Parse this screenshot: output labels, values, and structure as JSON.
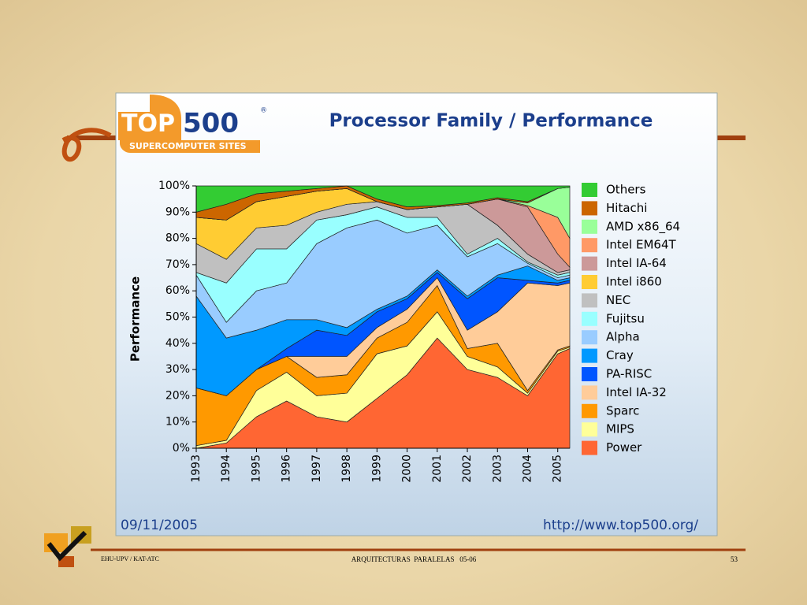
{
  "chart_data": {
    "type": "area",
    "stacked": true,
    "title": "Processor Family / Performance",
    "y_label": "Performance",
    "x": [
      1993,
      1994,
      1995,
      1996,
      1997,
      1998,
      1999,
      2000,
      2001,
      2002,
      2003,
      2004,
      2005,
      2005.4
    ],
    "xlim": [
      1993,
      2005.4
    ],
    "xticks": [
      1993,
      1994,
      1995,
      1996,
      1997,
      1998,
      1999,
      2000,
      2001,
      2002,
      2003,
      2004,
      2005
    ],
    "ylim": [
      0,
      100
    ],
    "yticks": [
      {
        "value": 0,
        "label": "0%"
      },
      {
        "value": 10,
        "label": "10%"
      },
      {
        "value": 20,
        "label": "20%"
      },
      {
        "value": 30,
        "label": "30%"
      },
      {
        "value": 40,
        "label": "40%"
      },
      {
        "value": 50,
        "label": "50%"
      },
      {
        "value": 60,
        "label": "60%"
      },
      {
        "value": 70,
        "label": "70%"
      },
      {
        "value": 80,
        "label": "80%"
      },
      {
        "value": 90,
        "label": "90%"
      },
      {
        "value": 100,
        "label": "100%"
      }
    ],
    "legend": "right",
    "series": [
      {
        "name": "Power",
        "color": "#ff6633",
        "values": [
          0,
          2,
          12,
          18,
          12,
          10,
          19,
          28,
          42,
          30,
          27,
          20,
          36,
          38
        ]
      },
      {
        "name": "MIPS",
        "color": "#ffff99",
        "values": [
          1,
          1,
          10,
          11,
          8,
          11,
          17,
          11,
          10,
          5,
          4,
          1,
          1,
          0.5
        ]
      },
      {
        "name": "Sparc",
        "color": "#ff9900",
        "values": [
          22,
          17,
          8,
          6,
          7,
          7,
          6,
          9,
          10,
          3,
          9,
          1,
          0.5,
          0.5
        ]
      },
      {
        "name": "Intel IA-32",
        "color": "#ffcc99",
        "values": [
          0,
          0,
          0,
          0,
          8,
          7,
          4,
          5,
          3,
          7,
          12,
          41,
          24.5,
          24
        ]
      },
      {
        "name": "PA-RISC",
        "color": "#0055ff",
        "values": [
          0,
          0,
          0,
          3,
          10,
          8,
          6,
          4,
          2,
          12,
          13,
          1,
          1,
          1
        ]
      },
      {
        "name": "Cray",
        "color": "#0099ff",
        "values": [
          35,
          22,
          15,
          11,
          4,
          3,
          1,
          1,
          1,
          1,
          1,
          5.5,
          1,
          1
        ]
      },
      {
        "name": "Alpha",
        "color": "#99ccff",
        "values": [
          8,
          6,
          15,
          14,
          29,
          38,
          34,
          24,
          17,
          15,
          12,
          1,
          1,
          1
        ]
      },
      {
        "name": "Fujitsu",
        "color": "#99ffff",
        "values": [
          1,
          15,
          16,
          13,
          9,
          5,
          5,
          6,
          3,
          1,
          2,
          0.5,
          1,
          1
        ]
      },
      {
        "name": "NEC",
        "color": "#c0c0c0",
        "values": [
          11,
          9,
          8,
          9,
          3,
          4,
          2,
          3,
          4,
          19,
          5,
          3,
          1,
          1
        ]
      },
      {
        "name": "Intel i860",
        "color": "#ffcc33",
        "values": [
          10,
          15,
          10,
          11,
          8,
          6,
          0,
          0,
          0,
          0,
          0,
          0,
          0,
          0
        ]
      },
      {
        "name": "Intel IA-64",
        "color": "#cc9999",
        "values": [
          0,
          0,
          0,
          0,
          0,
          0,
          0,
          0,
          0,
          0,
          10,
          18,
          7,
          1
        ]
      },
      {
        "name": "Intel EM64T",
        "color": "#ff9966",
        "values": [
          0,
          0,
          0,
          0,
          0,
          0,
          0,
          0,
          0,
          0,
          0,
          0.5,
          14,
          11
        ]
      },
      {
        "name": "AMD x86_64",
        "color": "#99ff99",
        "values": [
          0,
          0,
          0,
          0,
          0,
          0,
          0,
          0,
          0,
          0,
          0,
          1,
          11,
          19.5
        ]
      },
      {
        "name": "Hitachi",
        "color": "#cc6600",
        "values": [
          2,
          6,
          3,
          2,
          1,
          1,
          1,
          1,
          0.5,
          0.5,
          0.5,
          0.5,
          0,
          0
        ]
      },
      {
        "name": "Others",
        "color": "#33cc33",
        "values": [
          10,
          7,
          3,
          2,
          1,
          0,
          5,
          8,
          7.5,
          6.5,
          4.5,
          6,
          1,
          0.5
        ]
      }
    ]
  },
  "slide": {
    "logo_top": "TOP",
    "logo_500": "500",
    "logo_sub": "SUPERCOMPUTER SITES",
    "logo_mark": "®",
    "date": "09/11/2005",
    "url": "http://www.top500.org/",
    "footer_left": "EHU-UPV / KAT-ATC",
    "footer_center": "ARQUITECTURAS  PARALELAS   05-06",
    "page_number": "53"
  }
}
